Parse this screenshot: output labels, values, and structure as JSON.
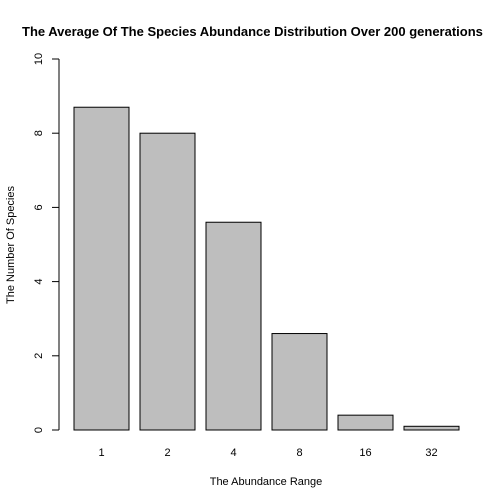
{
  "chart_data": {
    "type": "bar",
    "title": "The Average Of The Species Abundance Distribution Over 200 generations",
    "xlabel": "The Abundance Range",
    "ylabel": "The Number Of Species",
    "categories": [
      "1",
      "2",
      "4",
      "8",
      "16",
      "32"
    ],
    "values": [
      8.7,
      8.0,
      5.6,
      2.6,
      0.4,
      0.1
    ],
    "ylim": [
      0,
      10
    ],
    "yticks": [
      "0",
      "2",
      "4",
      "6",
      "8",
      "10"
    ],
    "grid": false,
    "bar_color": "#bebebe",
    "bar_border_color": "#000000"
  }
}
